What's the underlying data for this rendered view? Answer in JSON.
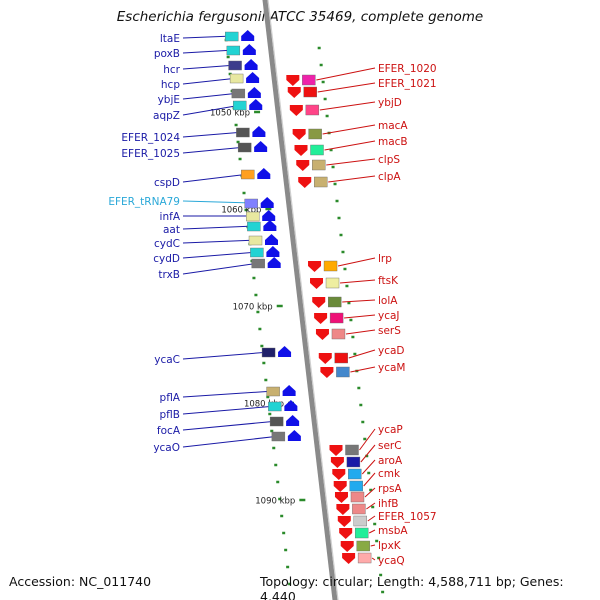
{
  "title": "Escherichia fergusonii ATCC 35469, complete genome",
  "footer": {
    "accession": "Accession: NC_011740",
    "stats": "Topology: circular; Length: 4,588,711 bp; Genes: 4,440"
  },
  "kbp_ticks": [
    "1050 kbp",
    "1060 kbp",
    "1070 kbp",
    "1080 kbp",
    "1090 kbp"
  ],
  "left_genes": [
    "ltaE",
    "poxB",
    "hcr",
    "hcp",
    "ybjE",
    "aqpZ",
    "EFER_1024",
    "EFER_1025",
    "cspD",
    "EFER_tRNA79",
    "infA",
    "aat",
    "cydC",
    "cydD",
    "trxB",
    "ycaC",
    "pflA",
    "pflB",
    "focA",
    "ycaO"
  ],
  "right_genes": [
    "EFER_1020",
    "EFER_1021",
    "ybjD",
    "macA",
    "macB",
    "clpS",
    "clpA",
    "lrp",
    "ftsK",
    "lolA",
    "ycaJ",
    "serS",
    "ycaD",
    "ycaM",
    "ycaP",
    "serC",
    "aroA",
    "cmk",
    "rpsA",
    "ihfB",
    "EFER_1057",
    "msbA",
    "lpxK",
    "ycaQ"
  ],
  "colors": {
    "left_label": "#1a1aa6",
    "trna_label": "#2aa8d8",
    "right_label": "#cc1111",
    "arrow_blue": "#1010e8",
    "arrow_red": "#ee1111",
    "backbone": "#8a8a8a",
    "tick_dot": "#2a8a2a"
  }
}
